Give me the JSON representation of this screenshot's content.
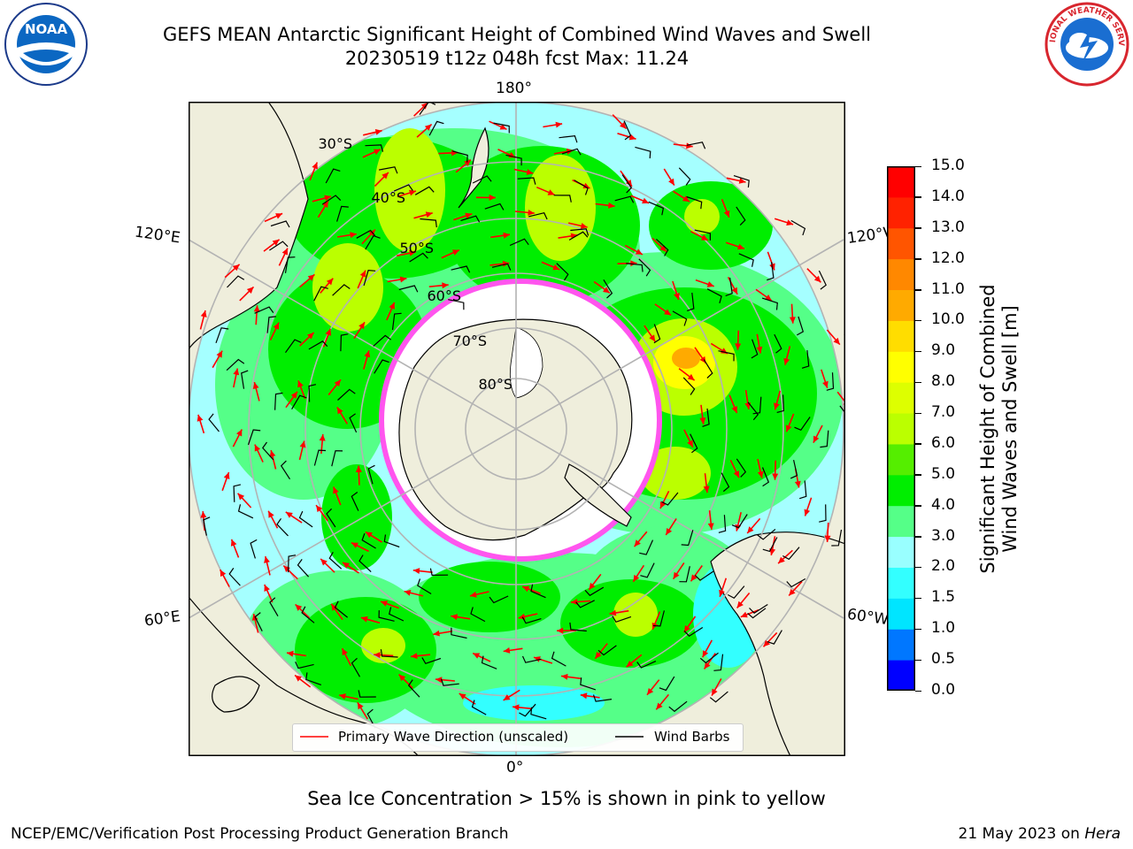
{
  "title": {
    "line1": "GEFS MEAN Antarctic Significant Height of Combined Wind Waves and Swell",
    "line2": "20230519 t12z 048h fcst   Max: 11.24"
  },
  "logos": {
    "noaa": {
      "name": "noaa-logo",
      "text": "NOAA"
    },
    "nws": {
      "name": "nws-logo",
      "text": "NATIONAL WEATHER SERVICE"
    }
  },
  "map": {
    "longitude_labels": [
      {
        "text": "180°",
        "pos": "top"
      },
      {
        "text": "0°",
        "pos": "bottom"
      },
      {
        "text": "120°E",
        "pos": "upper-left"
      },
      {
        "text": "120°W",
        "pos": "upper-right"
      },
      {
        "text": "60°E",
        "pos": "lower-left"
      },
      {
        "text": "60°W",
        "pos": "lower-right"
      }
    ],
    "latitude_labels": [
      "30°S",
      "40°S",
      "50°S",
      "60°S",
      "70°S",
      "80°S"
    ],
    "legend": {
      "wave_direction": "Primary Wave Direction (unscaled)",
      "wind_barbs": "Wind Barbs",
      "wave_color": "#ff0000",
      "barb_color": "#000000"
    }
  },
  "colorbar": {
    "title_line1": "Significant Height of Combined",
    "title_line2": "Wind Waves and Swell [m]",
    "ticks": [
      "0.0",
      "0.5",
      "1.0",
      "1.5",
      "2.0",
      "3.0",
      "4.0",
      "5.0",
      "6.0",
      "7.0",
      "8.0",
      "9.0",
      "10.0",
      "11.0",
      "12.0",
      "13.0",
      "14.0",
      "15.0"
    ],
    "colors": [
      "#0000ff",
      "#0077ff",
      "#00e5ff",
      "#33ffff",
      "#99ffff",
      "#55ff88",
      "#00ee00",
      "#55ee00",
      "#bbff00",
      "#ddff00",
      "#ffff00",
      "#ffdd00",
      "#ffaa00",
      "#ff8800",
      "#ff5500",
      "#ff2200",
      "#ff0000"
    ]
  },
  "caption": "Sea Ice Concentration > 15% is shown in pink to yellow",
  "footer": {
    "left": "NCEP/EMC/Verification Post Processing Product Generation Branch",
    "right_date": "21 May 2023 on ",
    "right_host": "Hera"
  }
}
